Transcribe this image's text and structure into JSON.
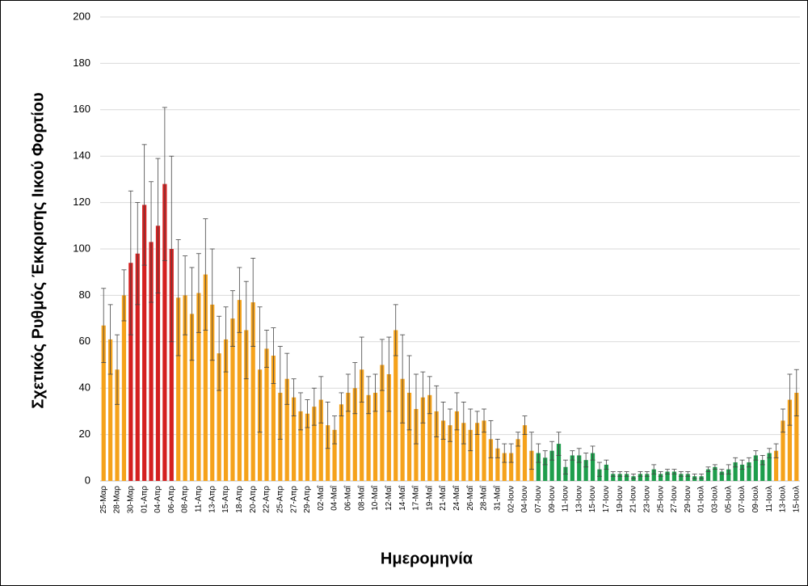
{
  "chart_data": {
    "type": "bar",
    "y_label": "Σχετικός Ρυθμός Έκκρισης Ιικού Φορτίου",
    "x_label": "Ημερομηνία",
    "categories": [
      "25-Μαρ",
      null,
      "28-Μαρ",
      null,
      "30-Μαρ",
      null,
      "01-Απρ",
      null,
      "04-Απρ",
      null,
      "06-Απρ",
      null,
      "08-Απρ",
      null,
      "11-Απρ",
      null,
      "13-Απρ",
      null,
      "15-Απρ",
      null,
      "18-Απρ",
      null,
      "20-Απρ",
      null,
      "22-Απρ",
      null,
      "25-Απρ",
      null,
      "27-Απρ",
      null,
      "29-Απρ",
      null,
      "02-Μαΐ",
      null,
      "04-Μαΐ",
      null,
      "06-Μαΐ",
      null,
      "08-Μαΐ",
      null,
      "10-Μαΐ",
      null,
      "12-Μαΐ",
      null,
      "14-Μαΐ",
      null,
      "17-Μαΐ",
      null,
      "19-Μαΐ",
      null,
      "21-Μαΐ",
      null,
      "24-Μαΐ",
      null,
      "26-Μαΐ",
      null,
      "28-Μαΐ",
      null,
      "31-Μαΐ",
      null,
      "02-Ιουν",
      null,
      "04-Ιουν",
      null,
      "07-Ιουν",
      null,
      "09-Ιουν",
      null,
      "11-Ιουν",
      null,
      "13-Ιουν",
      null,
      "15-Ιουν",
      null,
      "17-Ιουν",
      null,
      "19-Ιουν",
      null,
      "21-Ιουν",
      null,
      "23-Ιουν",
      null,
      "25-Ιουν",
      null,
      "27-Ιουν",
      null,
      "29-Ιουν",
      null,
      "01-Ιουλ",
      null,
      "03-Ιουλ",
      null,
      "05-Ιουλ",
      null,
      "07-Ιουλ",
      null,
      "09-Ιουλ",
      null,
      "11-Ιουλ",
      null,
      "13-Ιουλ",
      null,
      "15-Ιουλ"
    ],
    "values": [
      67,
      61,
      48,
      80,
      94,
      98,
      119,
      103,
      110,
      128,
      100,
      79,
      80,
      72,
      81,
      89,
      76,
      55,
      61,
      70,
      78,
      65,
      77,
      48,
      57,
      54,
      38,
      44,
      36,
      30,
      29,
      32,
      35,
      24,
      22,
      33,
      38,
      40,
      48,
      37,
      38,
      50,
      46,
      65,
      44,
      38,
      31,
      36,
      37,
      30,
      26,
      24,
      30,
      25,
      22,
      25,
      26,
      18,
      14,
      12,
      12,
      18,
      24,
      13,
      12,
      10,
      13,
      16,
      6,
      11,
      11,
      9,
      12,
      5,
      7,
      3,
      3,
      3,
      2,
      3,
      3,
      5,
      3,
      4,
      4,
      3,
      3,
      2,
      2,
      5,
      6,
      4,
      5,
      8,
      7,
      8,
      11,
      9,
      12,
      13,
      26,
      35,
      38
    ],
    "errors": [
      16,
      15,
      15,
      11,
      31,
      22,
      26,
      26,
      29,
      33,
      40,
      25,
      17,
      20,
      17,
      24,
      24,
      16,
      14,
      12,
      14,
      21,
      19,
      27,
      8,
      12,
      20,
      11,
      8,
      8,
      6,
      8,
      10,
      10,
      6,
      5,
      8,
      11,
      14,
      8,
      8,
      11,
      16,
      11,
      19,
      16,
      15,
      11,
      8,
      11,
      8,
      7,
      8,
      9,
      9,
      5,
      5,
      8,
      4,
      4,
      4,
      3,
      4,
      8,
      4,
      3,
      4,
      5,
      3,
      2,
      3,
      3,
      3,
      3,
      2,
      1,
      1,
      1,
      1,
      1,
      1,
      2,
      1,
      1,
      1,
      1,
      1,
      1,
      1,
      1,
      1,
      1,
      2,
      2,
      2,
      2,
      2,
      2,
      2,
      3,
      5,
      11,
      10
    ],
    "colors": [
      "#f5a21b",
      "#f5a21b",
      "#f5a21b",
      "#f5a21b",
      "#d42020",
      "#d42020",
      "#d42020",
      "#d42020",
      "#d42020",
      "#d42020",
      "#d42020",
      "#f5a21b",
      "#f5a21b",
      "#f5a21b",
      "#f5a21b",
      "#f5a21b",
      "#f5a21b",
      "#f5a21b",
      "#f5a21b",
      "#f5a21b",
      "#f5a21b",
      "#f5a21b",
      "#f5a21b",
      "#f5a21b",
      "#f5a21b",
      "#f5a21b",
      "#f5a21b",
      "#f5a21b",
      "#f5a21b",
      "#f5a21b",
      "#f5a21b",
      "#f5a21b",
      "#f5a21b",
      "#f5a21b",
      "#f5a21b",
      "#f5a21b",
      "#f5a21b",
      "#f5a21b",
      "#f5a21b",
      "#f5a21b",
      "#f5a21b",
      "#f5a21b",
      "#f5a21b",
      "#f5a21b",
      "#f5a21b",
      "#f5a21b",
      "#f5a21b",
      "#f5a21b",
      "#f5a21b",
      "#f5a21b",
      "#f5a21b",
      "#f5a21b",
      "#f5a21b",
      "#f5a21b",
      "#f5a21b",
      "#f5a21b",
      "#f5a21b",
      "#f5a21b",
      "#f5a21b",
      "#f5a21b",
      "#f5a21b",
      "#f5a21b",
      "#f5a21b",
      "#f5a21b",
      "#1e9e4c",
      "#1e9e4c",
      "#1e9e4c",
      "#1e9e4c",
      "#1e9e4c",
      "#1e9e4c",
      "#1e9e4c",
      "#1e9e4c",
      "#1e9e4c",
      "#1e9e4c",
      "#1e9e4c",
      "#1e9e4c",
      "#1e9e4c",
      "#1e9e4c",
      "#1e9e4c",
      "#1e9e4c",
      "#1e9e4c",
      "#1e9e4c",
      "#1e9e4c",
      "#1e9e4c",
      "#1e9e4c",
      "#1e9e4c",
      "#1e9e4c",
      "#1e9e4c",
      "#1e9e4c",
      "#1e9e4c",
      "#1e9e4c",
      "#1e9e4c",
      "#1e9e4c",
      "#1e9e4c",
      "#1e9e4c",
      "#1e9e4c",
      "#1e9e4c",
      "#1e9e4c",
      "#1e9e4c",
      "#f5a21b",
      "#f5a21b",
      "#f5a21b",
      "#f5a21b"
    ],
    "ylim": [
      0,
      200
    ],
    "yticks": [
      0,
      20,
      40,
      60,
      80,
      100,
      120,
      140,
      160,
      180,
      200
    ],
    "grid": true
  }
}
